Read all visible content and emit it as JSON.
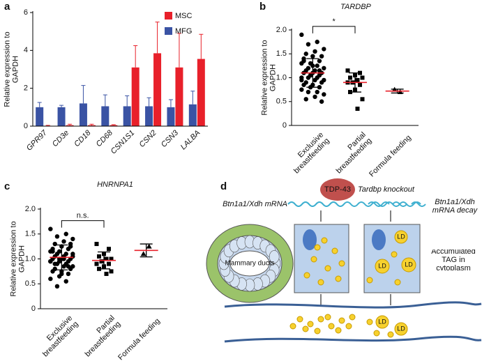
{
  "panel_labels": [
    "a",
    "b",
    "c",
    "d"
  ],
  "chart_data": [
    {
      "type": "bar",
      "ylabel": "Relative expression to GAPDH",
      "categories": [
        "GPR97",
        "CD3e",
        "CD18",
        "CD68",
        "CSN1S1",
        "CSN2",
        "CSN3",
        "LALBA"
      ],
      "series": [
        {
          "name": "MSC",
          "color": "#e8202a",
          "values": [
            0.02,
            0.05,
            0.05,
            0.05,
            3.1,
            3.85,
            3.1,
            3.55
          ],
          "errors": [
            0.02,
            0.05,
            0.05,
            0.03,
            1.15,
            1.65,
            1.8,
            1.3
          ]
        },
        {
          "name": "MFG",
          "color": "#3a53a4",
          "values": [
            1.0,
            1.0,
            1.2,
            1.05,
            1.05,
            1.05,
            1.0,
            1.15
          ],
          "errors": [
            0.25,
            0.1,
            0.95,
            0.6,
            0.55,
            0.45,
            0.4,
            0.7
          ]
        }
      ],
      "ylim": [
        0,
        6
      ],
      "yticks": [
        0,
        2,
        4,
        6
      ]
    },
    {
      "type": "dot",
      "title": "TARDBP",
      "ylabel": "Relative expression to GAPDH",
      "annotation": "*",
      "categories": [
        "Exclusive breastfeeding",
        "Partial breastfeeding",
        "Formula feeding"
      ],
      "groups": [
        {
          "marker": "circle",
          "values": [
            1.9,
            1.75,
            1.7,
            1.6,
            1.55,
            1.5,
            1.45,
            1.45,
            1.4,
            1.35,
            1.3,
            1.3,
            1.25,
            1.2,
            1.2,
            1.15,
            1.15,
            1.1,
            1.1,
            1.1,
            1.05,
            1.05,
            1.0,
            1.0,
            1.0,
            0.95,
            0.95,
            0.9,
            0.9,
            0.85,
            0.85,
            0.8,
            0.8,
            0.75,
            0.7,
            0.7,
            0.65,
            0.6,
            0.55,
            0.5,
            1.25,
            1.35,
            1.15,
            1.05,
            0.95
          ],
          "mean": 1.1,
          "sd": 0.3
        },
        {
          "marker": "square",
          "values": [
            1.15,
            1.1,
            1.05,
            1.0,
            1.0,
            0.95,
            0.9,
            0.9,
            0.85,
            0.75,
            0.7,
            0.55,
            0.35
          ],
          "mean": 0.9,
          "sd": 0.2
        },
        {
          "marker": "triangle",
          "values": [
            0.75,
            0.7
          ],
          "mean": 0.72,
          "sd": 0.04
        }
      ],
      "mean_color": "#e8202a",
      "ylim": [
        0,
        2
      ],
      "yticks": [
        0,
        0.5,
        {
          "value": 1,
          "label": "1.0"
        },
        1.5,
        {
          "value": 2,
          "label": "2.0"
        }
      ]
    },
    {
      "type": "dot",
      "title": "HNRNPA1",
      "ylabel": "Relative expression to GAPDH",
      "annotation": "n.s.",
      "categories": [
        "Exclusive breastfeeding",
        "Partial breastfeeding",
        "Formula feeding"
      ],
      "groups": [
        {
          "marker": "circle",
          "values": [
            1.6,
            1.5,
            1.45,
            1.4,
            1.35,
            1.3,
            1.3,
            1.25,
            1.2,
            1.2,
            1.15,
            1.15,
            1.1,
            1.1,
            1.05,
            1.05,
            1.05,
            1.0,
            1.0,
            1.0,
            0.95,
            0.95,
            0.95,
            0.9,
            0.9,
            0.85,
            0.85,
            0.8,
            0.8,
            0.75,
            0.75,
            0.7,
            0.65,
            0.6,
            0.55,
            0.45,
            1.1,
            1.0,
            0.9,
            1.25,
            0.7,
            1.15,
            0.85,
            1.0,
            0.95
          ],
          "mean": 1.03,
          "sd": 0.25
        },
        {
          "marker": "square",
          "values": [
            1.3,
            1.2,
            1.1,
            1.05,
            1.0,
            1.0,
            0.95,
            0.9,
            0.9,
            0.85,
            0.8,
            0.75,
            0.7
          ],
          "mean": 0.97,
          "sd": 0.17
        },
        {
          "marker": "triangle",
          "values": [
            1.1,
            1.25
          ],
          "mean": 1.17,
          "sd": 0.13
        }
      ],
      "mean_color": "#e8202a",
      "ylim": [
        0,
        2
      ],
      "yticks": [
        0,
        0.5,
        {
          "value": 1,
          "label": "1.0"
        },
        1.5,
        {
          "value": 2,
          "label": "2.0"
        }
      ]
    }
  ],
  "diagram": {
    "protein": "TDP-43",
    "knockout": "Tardbp knockout",
    "mrna": "Btn1a1/Xdh mRNA",
    "mrna_decay": "Btn1a1/Xdh mRNA decay",
    "ducts": "Mammary ducts",
    "tag": "Accumulated TAG in cytoplasm",
    "droplet": "LD"
  }
}
